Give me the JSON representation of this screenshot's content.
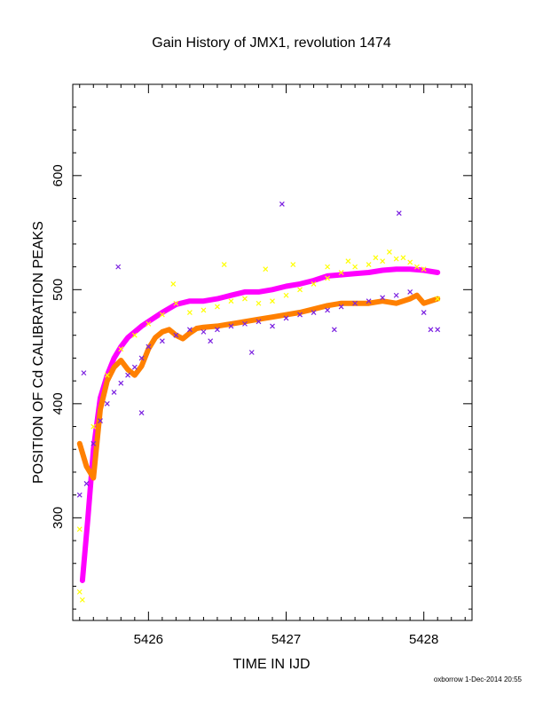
{
  "chart_data": {
    "type": "scatter",
    "title": "Gain History of JMX1, revolution 1474",
    "xlabel": "TIME IN IJD",
    "ylabel": "POSITION OF Cd CALIBRATION PEAKS",
    "credit": "oxborrow 1-Dec-2014 20:55",
    "xlim": [
      5425.45,
      5428.35
    ],
    "ylim": [
      210,
      680
    ],
    "xticks": [
      5426,
      5427,
      5428
    ],
    "xtick_labels": [
      "5426",
      "5427",
      "5428"
    ],
    "yticks": [
      300,
      400,
      500,
      600
    ],
    "ytick_labels": [
      "300",
      "400",
      "500",
      "600"
    ],
    "grid": false,
    "legend": "none",
    "series": [
      {
        "color": "#ff00ff",
        "style": "thick-line",
        "x": [
          5425.52,
          5425.56,
          5425.6,
          5425.65,
          5425.7,
          5425.75,
          5425.8,
          5425.85,
          5425.9,
          5425.95,
          5426.0,
          5426.1,
          5426.2,
          5426.3,
          5426.4,
          5426.5,
          5426.6,
          5426.7,
          5426.8,
          5426.9,
          5427.0,
          5427.1,
          5427.2,
          5427.3,
          5427.4,
          5427.5,
          5427.6,
          5427.7,
          5427.8,
          5427.9,
          5428.0,
          5428.1
        ],
        "y": [
          245,
          300,
          360,
          405,
          425,
          440,
          450,
          458,
          463,
          468,
          472,
          480,
          487,
          490,
          490,
          492,
          495,
          498,
          498,
          500,
          503,
          505,
          508,
          512,
          513,
          514,
          515,
          517,
          518,
          518,
          517,
          515
        ]
      },
      {
        "color": "#ff8000",
        "style": "thick-line",
        "x": [
          5425.5,
          5425.55,
          5425.6,
          5425.65,
          5425.7,
          5425.75,
          5425.8,
          5425.85,
          5425.9,
          5425.95,
          5426.0,
          5426.05,
          5426.1,
          5426.15,
          5426.2,
          5426.25,
          5426.3,
          5426.35,
          5426.4,
          5426.5,
          5426.6,
          5426.7,
          5426.8,
          5426.9,
          5427.0,
          5427.1,
          5427.2,
          5427.3,
          5427.4,
          5427.5,
          5427.6,
          5427.7,
          5427.8,
          5427.9,
          5427.95,
          5428.0,
          5428.1
        ],
        "y": [
          365,
          345,
          335,
          395,
          420,
          432,
          438,
          430,
          425,
          433,
          448,
          458,
          463,
          465,
          460,
          457,
          462,
          466,
          467,
          468,
          470,
          472,
          474,
          476,
          478,
          480,
          483,
          486,
          488,
          488,
          488,
          490,
          488,
          492,
          495,
          488,
          492
        ]
      },
      {
        "color": "#ffff00",
        "style": "scatter",
        "x": [
          5425.5,
          5425.5,
          5425.52,
          5425.6,
          5425.7,
          5425.8,
          5425.9,
          5426.0,
          5426.1,
          5426.2,
          5426.3,
          5426.4,
          5426.5,
          5426.6,
          5426.7,
          5426.8,
          5426.9,
          5427.0,
          5427.1,
          5427.2,
          5427.3,
          5427.4,
          5427.5,
          5427.6,
          5427.7,
          5427.8,
          5427.9,
          5428.0,
          5428.1,
          5426.18,
          5426.55,
          5426.85,
          5427.05,
          5427.3,
          5427.45,
          5427.65,
          5427.75,
          5427.85,
          5427.95
        ],
        "y": [
          290,
          235,
          228,
          380,
          425,
          448,
          460,
          470,
          478,
          488,
          480,
          482,
          485,
          490,
          492,
          488,
          490,
          495,
          500,
          505,
          510,
          515,
          520,
          522,
          525,
          527,
          524,
          518,
          492,
          505,
          522,
          518,
          522,
          520,
          525,
          528,
          533,
          528,
          520
        ]
      },
      {
        "color": "#7a1fe0",
        "style": "scatter",
        "x": [
          5425.5,
          5425.55,
          5425.6,
          5425.65,
          5425.7,
          5425.75,
          5425.8,
          5425.85,
          5425.9,
          5425.95,
          5426.0,
          5426.1,
          5426.2,
          5426.3,
          5426.4,
          5426.5,
          5426.6,
          5426.7,
          5426.8,
          5426.9,
          5427.0,
          5427.1,
          5427.2,
          5427.3,
          5427.4,
          5427.5,
          5427.6,
          5427.7,
          5427.8,
          5427.9,
          5428.0,
          5428.05,
          5428.1,
          5425.53,
          5425.78,
          5425.95,
          5426.97,
          5427.82,
          5426.45,
          5426.75,
          5427.35
        ],
        "y": [
          320,
          330,
          365,
          385,
          400,
          410,
          418,
          425,
          432,
          440,
          450,
          455,
          460,
          465,
          463,
          465,
          468,
          470,
          472,
          468,
          475,
          478,
          480,
          482,
          485,
          488,
          490,
          493,
          495,
          498,
          480,
          465,
          465,
          427,
          520,
          392,
          575,
          567,
          455,
          445,
          465
        ]
      }
    ]
  }
}
